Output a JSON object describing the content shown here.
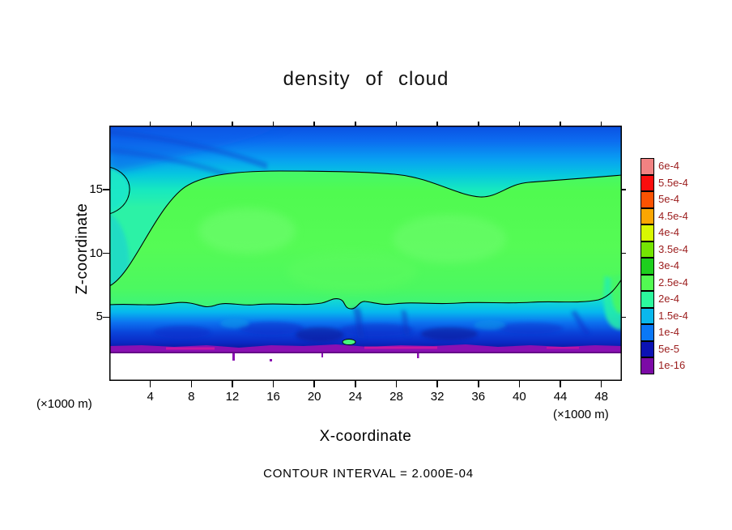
{
  "title": "density of cloud",
  "xlabel": "X-coordinate",
  "ylabel": "Z-coordinate",
  "x_unit_left": "(×1000 m)",
  "x_unit_right": "(×1000 m)",
  "footer": "CONTOUR INTERVAL = 2.000E-04",
  "x_ticks": [
    "4",
    "8",
    "12",
    "16",
    "20",
    "24",
    "28",
    "32",
    "36",
    "40",
    "44",
    "48"
  ],
  "y_ticks": [
    "5",
    "10",
    "15"
  ],
  "colorbar": {
    "labels": [
      "6e-4",
      "5.5e-4",
      "5e-4",
      "4.5e-4",
      "4e-4",
      "3.5e-4",
      "3e-4",
      "2.5e-4",
      "2e-4",
      "1.5e-4",
      "1e-4",
      "5e-5",
      "1e-16"
    ],
    "colors": [
      "#f28282",
      "#fb0d0d",
      "#fb5202",
      "#fba602",
      "#d8f802",
      "#74e402",
      "#1ecf1e",
      "#52fa52",
      "#2cf89e",
      "#0ab8ec",
      "#0a78f6",
      "#0c12b4",
      "#7c0aa6"
    ],
    "label_color": "#9b1c1c"
  },
  "chart_data": {
    "type": "heatmap",
    "subtype": "filled_contour",
    "title": "density of cloud",
    "xlabel": "X-coordinate (×1000 m)",
    "ylabel": "Z-coordinate (×1000 m)",
    "x_range": [
      0,
      50
    ],
    "z_range": [
      0,
      20
    ],
    "contour_interval": 0.0002,
    "levels": [
      1e-16,
      5e-05,
      0.0001,
      0.00015,
      0.0002,
      0.00025,
      0.0003,
      0.00035,
      0.0004,
      0.00045,
      0.0005,
      0.00055,
      0.0006
    ],
    "level_colors_low_to_high": [
      "#7c0aa6",
      "#0c12b4",
      "#0a78f6",
      "#0ab8ec",
      "#2cf89e",
      "#52fa52",
      "#1ecf1e",
      "#74e402",
      "#d8f802",
      "#fba602",
      "#fb5202",
      "#fb0d0d",
      "#f28282"
    ],
    "x": [
      0,
      5,
      10,
      15,
      20,
      25,
      30,
      35,
      40,
      45,
      50
    ],
    "z": [
      20,
      18,
      16,
      14,
      12,
      10,
      8,
      6,
      5,
      4,
      3,
      2.5
    ],
    "values": [
      [
        9e-05,
        9e-05,
        9e-05,
        0.0001,
        0.0001,
        0.0001,
        0.0001,
        0.0001,
        0.0001,
        0.0001,
        0.00011
      ],
      [
        0.00011,
        0.00012,
        0.00013,
        0.00014,
        0.00015,
        0.00015,
        0.00015,
        0.00014,
        0.00014,
        0.00015,
        0.00016
      ],
      [
        0.00015,
        0.00019,
        0.0002,
        0.00021,
        0.00022,
        0.00022,
        0.00021,
        0.00019,
        0.0002,
        0.00021,
        0.00022
      ],
      [
        0.00014,
        0.00021,
        0.00023,
        0.00024,
        0.00024,
        0.00024,
        0.00023,
        0.00022,
        0.00023,
        0.00024,
        0.00024
      ],
      [
        0.00017,
        0.00023,
        0.00025,
        0.00026,
        0.00026,
        0.00026,
        0.00025,
        0.00026,
        0.00026,
        0.00025,
        0.00025
      ],
      [
        0.00019,
        0.00024,
        0.00026,
        0.00027,
        0.00027,
        0.00027,
        0.00026,
        0.00027,
        0.00027,
        0.00026,
        0.00026
      ],
      [
        0.00021,
        0.00024,
        0.00026,
        0.00026,
        0.00026,
        0.00026,
        0.00026,
        0.00026,
        0.00026,
        0.00025,
        0.00026
      ],
      [
        0.0002,
        0.0002,
        0.00021,
        0.0002,
        0.0002,
        0.00021,
        0.0002,
        0.0002,
        0.0002,
        0.0002,
        0.00023
      ],
      [
        0.00015,
        0.00014,
        0.00015,
        0.00015,
        0.00014,
        0.00015,
        0.00015,
        0.00014,
        0.00014,
        0.00014,
        0.00019
      ],
      [
        0.0001,
        9e-05,
        0.0001,
        0.0001,
        9e-05,
        0.0001,
        0.0001,
        9e-05,
        9e-05,
        0.0001,
        0.00013
      ],
      [
        5e-05,
        4e-05,
        5e-05,
        6e-05,
        4e-05,
        6e-05,
        5e-05,
        4e-05,
        5e-05,
        5e-05,
        7e-05
      ],
      [
        1e-05,
        1e-05,
        1e-05,
        1e-05,
        1e-05,
        1e-05,
        1e-05,
        1e-05,
        1e-05,
        1e-05,
        1e-05
      ]
    ],
    "contour_lines": [
      {
        "level": 0.0002,
        "description": "upper cloud boundary: rises from z≈8 at x=0 to z≈16, dips to z≈14.5 near x=36, flat to right edge"
      },
      {
        "level": 0.0002,
        "description": "lower cloud boundary: wiggly line near z≈6 across full width, rises to z≈7.5 at right edge"
      },
      {
        "level": 0.0004,
        "description": "tiny closed contour near x≈23, z≈2.8 (small local maximum)"
      }
    ],
    "notes": "White below z≈2.5 (zero values); thin purple layer (≈1e-16–5e-5) along cloud base near z≈2.5; dark blue turbulent band z≈3–5; green core ≈2.5–2.8e-4 between z≈6 and 16"
  }
}
